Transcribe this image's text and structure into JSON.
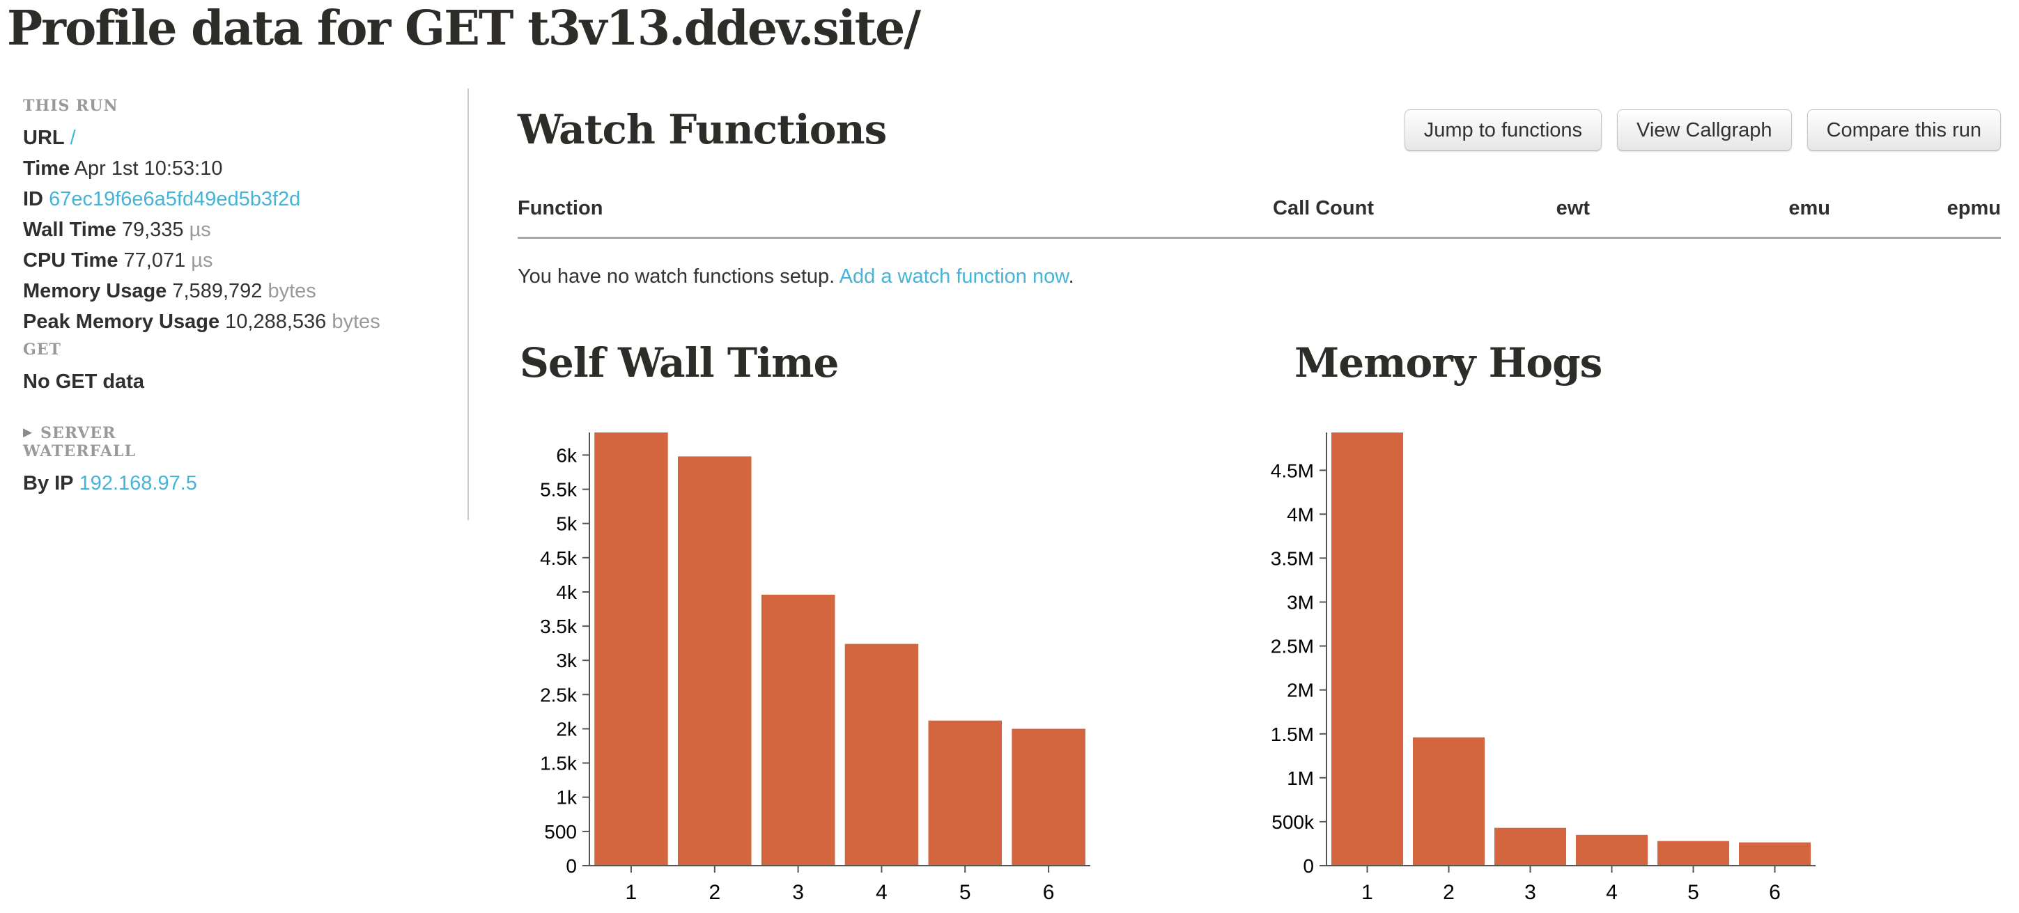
{
  "page": {
    "title": "Profile data for GET t3v13.ddev.site/"
  },
  "colors": {
    "link": "#46b4d6",
    "bar": "#d3653f",
    "axis": "#555555",
    "muted_text": "#999999",
    "table_rule": "#a7a7a7"
  },
  "sidebar": {
    "this_run_heading": "THIS RUN",
    "fields": [
      {
        "label": "URL",
        "value": "/"
      },
      {
        "label": "Time",
        "value": "Apr 1st 10:53:10"
      },
      {
        "label": "ID",
        "value": "67ec19f6e6a5fd49ed5b3f2d"
      },
      {
        "label": "Wall Time",
        "value": "79,335",
        "unit": "µs"
      },
      {
        "label": "CPU Time",
        "value": "77,071",
        "unit": "µs"
      },
      {
        "label": "Memory Usage",
        "value": "7,589,792",
        "unit": "bytes"
      },
      {
        "label": "Peak Memory Usage",
        "value": "10,288,536",
        "unit": "bytes"
      }
    ],
    "get_heading": "GET",
    "get_empty": "No GET data",
    "server_caret": "▶",
    "server_heading": "SERVER",
    "waterfall_heading": "WATERFALL",
    "by_ip_label": "By IP",
    "by_ip_value": "192.168.97.5"
  },
  "watch": {
    "heading": "Watch Functions",
    "buttons": [
      {
        "label": "Jump to functions"
      },
      {
        "label": "View Callgraph"
      },
      {
        "label": "Compare this run"
      }
    ],
    "table_headers": [
      "Function",
      "Call Count",
      "ewt",
      "emu",
      "epmu"
    ],
    "empty_text": "You have no watch functions setup.",
    "empty_link": "Add a watch function now",
    "empty_suffix": "."
  },
  "chart_data": [
    {
      "type": "bar",
      "title": "Self Wall Time",
      "xlabel": "",
      "ylabel": "",
      "categories": [
        "1",
        "2",
        "3",
        "4",
        "5",
        "6"
      ],
      "values": [
        6330,
        5980,
        3960,
        3240,
        2120,
        2000
      ],
      "ylim": [
        0,
        6330
      ],
      "ytick_values": [
        0,
        500,
        1000,
        1500,
        2000,
        2500,
        3000,
        3500,
        4000,
        4500,
        5000,
        5500,
        6000
      ],
      "ytick_labels": [
        "0",
        "500",
        "1k",
        "1.5k",
        "2k",
        "2.5k",
        "3k",
        "3.5k",
        "4k",
        "4.5k",
        "5k",
        "5.5k",
        "6k"
      ],
      "grid": false,
      "legend": "none",
      "bar_color": "#d3653f"
    },
    {
      "type": "bar",
      "title": "Memory Hogs",
      "xlabel": "",
      "ylabel": "",
      "categories": [
        "1",
        "2",
        "3",
        "4",
        "5",
        "6"
      ],
      "values": [
        4930000,
        1460000,
        430000,
        350000,
        280000,
        265000
      ],
      "ylim": [
        0,
        4930000
      ],
      "ytick_values": [
        0,
        500000,
        1000000,
        1500000,
        2000000,
        2500000,
        3000000,
        3500000,
        4000000,
        4500000
      ],
      "ytick_labels": [
        "0",
        "500k",
        "1M",
        "1.5M",
        "2M",
        "2.5M",
        "3M",
        "3.5M",
        "4M",
        "4.5M"
      ],
      "grid": false,
      "legend": "none",
      "bar_color": "#d3653f"
    }
  ]
}
